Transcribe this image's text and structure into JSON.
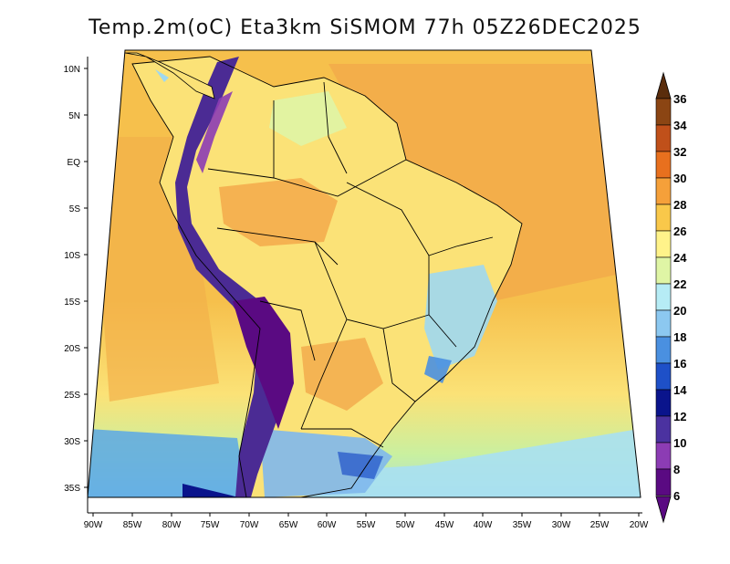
{
  "title": "Temp.2m(oC) Eta3km SiSMOM 77h 05Z26DEC2025",
  "lat_labels": [
    "10N",
    "5N",
    "EQ",
    "5S",
    "10S",
    "15S",
    "20S",
    "25S",
    "30S",
    "35S"
  ],
  "lon_labels": [
    "90W",
    "85W",
    "80W",
    "75W",
    "70W",
    "65W",
    "60W",
    "55W",
    "50W",
    "45W",
    "40W",
    "35W",
    "30W",
    "25W",
    "20W"
  ],
  "colorbar": {
    "labels": [
      "36",
      "34",
      "32",
      "30",
      "28",
      "26",
      "24",
      "22",
      "20",
      "18",
      "16",
      "14",
      "12",
      "10",
      "8",
      "6"
    ],
    "colors": [
      "#5a2d0c",
      "#8b4513",
      "#c0501a",
      "#e8701e",
      "#f5a03a",
      "#f9c84a",
      "#fff38a",
      "#dff5a5",
      "#b6ecf5",
      "#8cc8f0",
      "#4a90e0",
      "#1e50c8",
      "#0a148c",
      "#4b32a0",
      "#8c3cb4",
      "#5a0a82"
    ]
  },
  "palette": {
    "sea_warm": "#f6c04c",
    "sea_mid": "#fbe277",
    "sea_cool": "#c9f0a0",
    "sea_cold": "#9fd8ef",
    "land": "#fbe277",
    "land_hot": "#f3a94a",
    "highland": "#4b2b94",
    "andes_cold": "#5a0a82",
    "south_cold": "#4aa0e0"
  }
}
